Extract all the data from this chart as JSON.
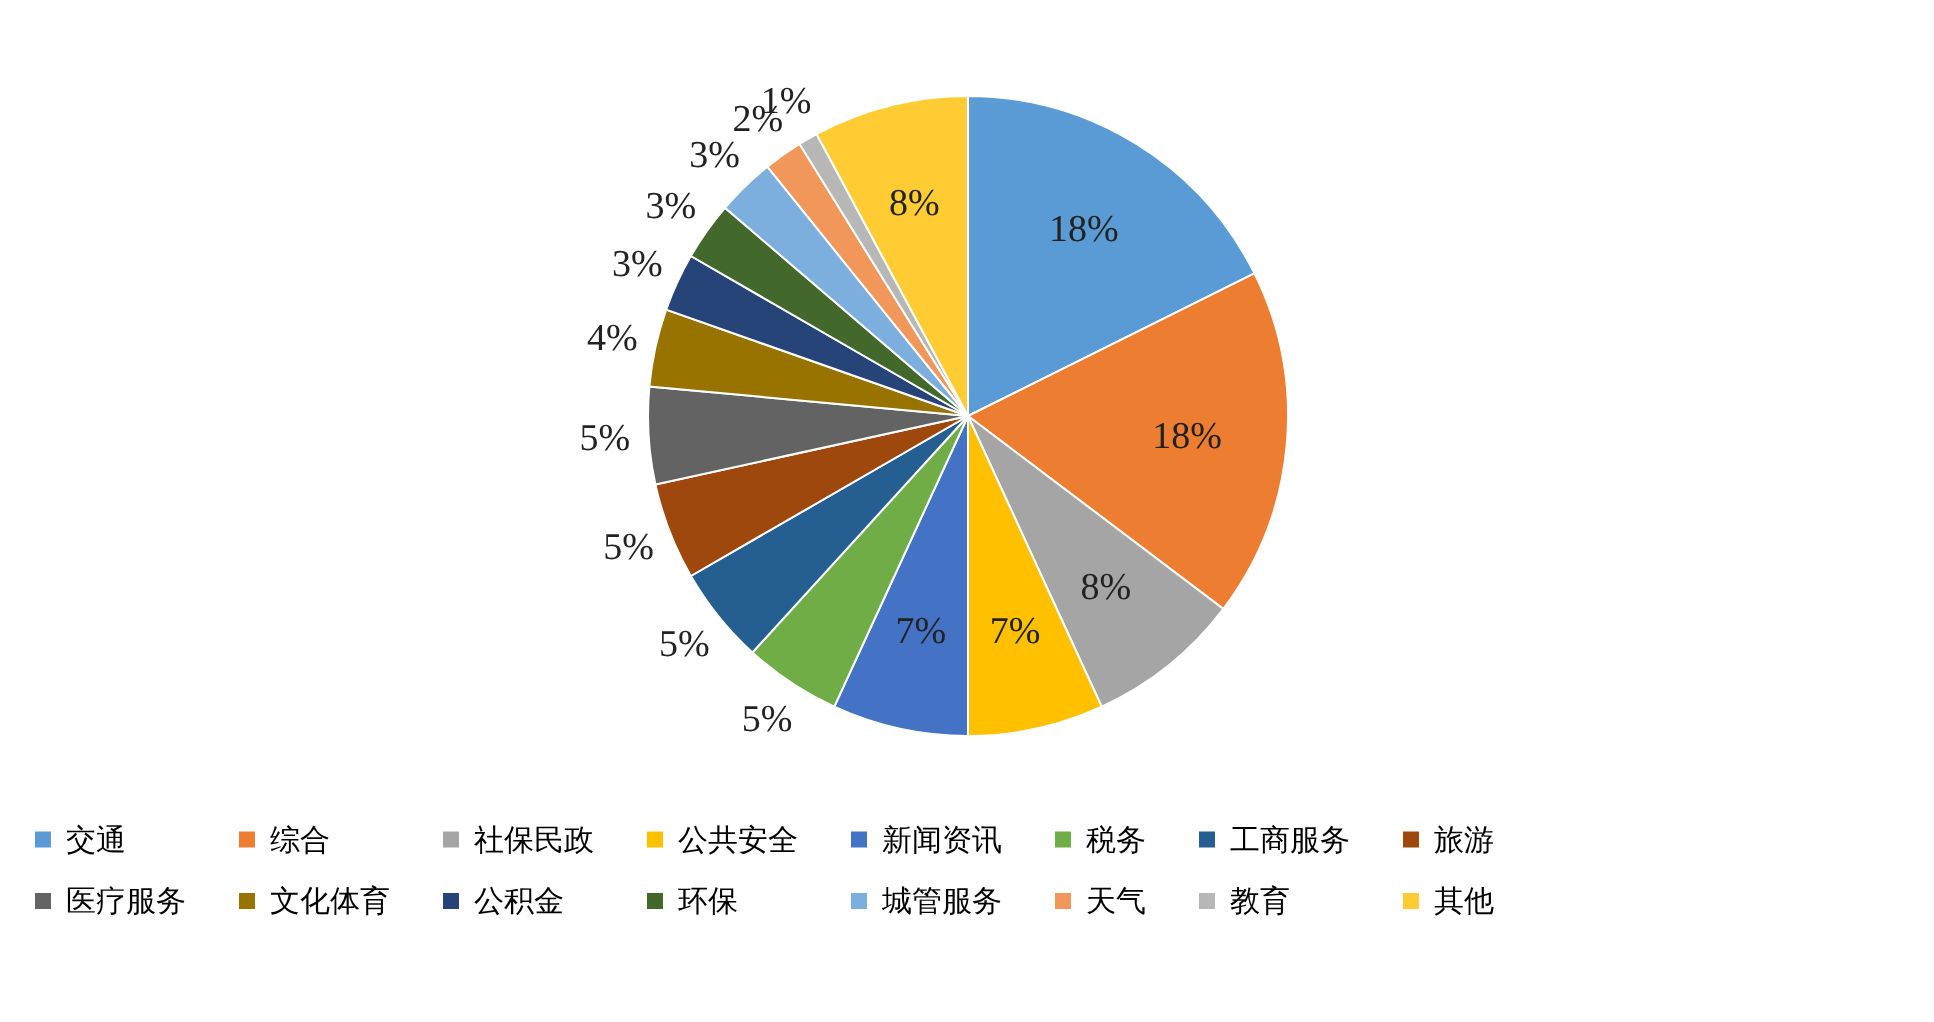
{
  "chart_data": {
    "type": "pie",
    "categories": [
      "交通",
      "综合",
      "社保民政",
      "公共安全",
      "新闻资讯",
      "税务",
      "工商服务",
      "旅游",
      "医疗服务",
      "文化体育",
      "公积金",
      "环保",
      "城管服务",
      "天气",
      "教育",
      "其他"
    ],
    "values": [
      18,
      18,
      8,
      7,
      7,
      5,
      5,
      5,
      5,
      4,
      3,
      3,
      3,
      2,
      1,
      8
    ],
    "colors": [
      "#5b9bd5",
      "#ed7d31",
      "#a5a5a5",
      "#ffc000",
      "#4472c4",
      "#70ad47",
      "#255e91",
      "#9e480e",
      "#636363",
      "#997300",
      "#264478",
      "#43682b",
      "#7cafdd",
      "#f1975a",
      "#b7b7b7",
      "#ffcd33"
    ],
    "value_labels": [
      "18%",
      "18%",
      "8%",
      "7%",
      "7%",
      "5%",
      "5%",
      "5%",
      "5%",
      "4%",
      "3%",
      "3%",
      "3%",
      "2%",
      "1%",
      "8%"
    ],
    "legend": "bottom"
  }
}
